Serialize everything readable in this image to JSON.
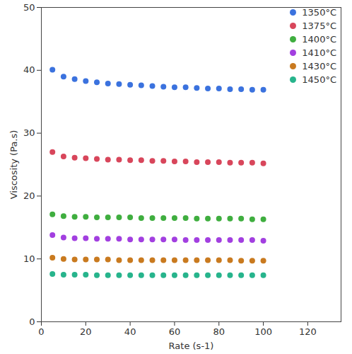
{
  "chart_data": {
    "type": "scatter",
    "x_label": "Rate (s-1)",
    "y_label": "Viscosity (Pa.s)",
    "xlim": [
      0,
      135
    ],
    "xticks": [
      0,
      20,
      40,
      60,
      80,
      100,
      120
    ],
    "ylim": [
      0,
      50
    ],
    "yticks": [
      0,
      10,
      20,
      30,
      40,
      50
    ],
    "grid": false,
    "legend": "top-right",
    "x": [
      5,
      10,
      15,
      20,
      25,
      30,
      35,
      40,
      45,
      50,
      55,
      60,
      65,
      70,
      75,
      80,
      85,
      90,
      95,
      100
    ],
    "series": [
      {
        "name": "1350°C",
        "color": "#3b72de",
        "values": [
          40.1,
          39.0,
          38.6,
          38.3,
          38.1,
          37.9,
          37.8,
          37.7,
          37.6,
          37.5,
          37.4,
          37.3,
          37.3,
          37.2,
          37.1,
          37.1,
          37.0,
          37.0,
          36.9,
          36.9
        ]
      },
      {
        "name": "1375°C",
        "color": "#d8465b",
        "values": [
          27.0,
          26.3,
          26.1,
          26.0,
          25.9,
          25.8,
          25.8,
          25.7,
          25.7,
          25.6,
          25.6,
          25.5,
          25.5,
          25.4,
          25.4,
          25.4,
          25.3,
          25.3,
          25.3,
          25.2
        ]
      },
      {
        "name": "1400°C",
        "color": "#3fae3f",
        "values": [
          17.1,
          16.8,
          16.7,
          16.7,
          16.6,
          16.6,
          16.6,
          16.6,
          16.5,
          16.5,
          16.5,
          16.5,
          16.5,
          16.4,
          16.4,
          16.4,
          16.4,
          16.4,
          16.3,
          16.3
        ]
      },
      {
        "name": "1410°C",
        "color": "#a23fe0",
        "values": [
          13.8,
          13.4,
          13.3,
          13.3,
          13.2,
          13.2,
          13.2,
          13.1,
          13.1,
          13.1,
          13.1,
          13.1,
          13.0,
          13.0,
          13.0,
          13.0,
          13.0,
          13.0,
          13.0,
          12.9
        ]
      },
      {
        "name": "1430°C",
        "color": "#c97a1f",
        "values": [
          10.2,
          10.0,
          9.9,
          9.9,
          9.9,
          9.9,
          9.8,
          9.8,
          9.8,
          9.8,
          9.8,
          9.8,
          9.8,
          9.8,
          9.8,
          9.8,
          9.8,
          9.7,
          9.7,
          9.7
        ]
      },
      {
        "name": "1450°C",
        "color": "#27b48c",
        "values": [
          7.6,
          7.5,
          7.5,
          7.5,
          7.4,
          7.4,
          7.4,
          7.4,
          7.4,
          7.4,
          7.4,
          7.4,
          7.4,
          7.4,
          7.4,
          7.4,
          7.4,
          7.4,
          7.4,
          7.4
        ]
      }
    ]
  }
}
